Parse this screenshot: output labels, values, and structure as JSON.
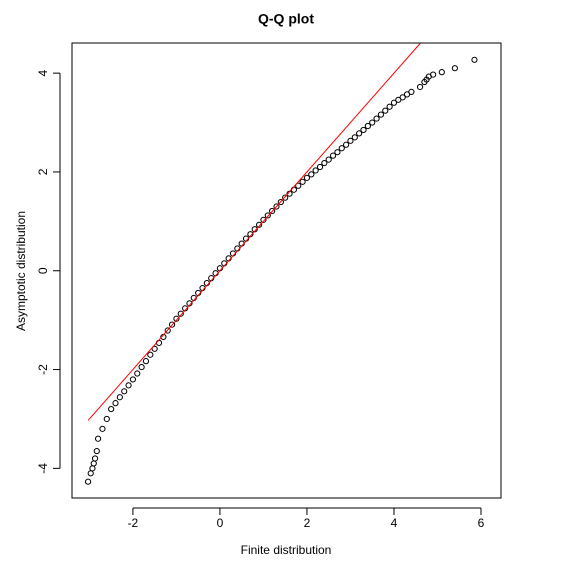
{
  "chart_data": {
    "type": "scatter",
    "title": "Q-Q plot",
    "x_label": "Finite distribution",
    "y_label": "Asymptotic distribution",
    "xlim": [
      -3.4,
      6.46
    ],
    "ylim": [
      -4.6,
      4.61
    ],
    "xticks": [
      -2,
      0,
      2,
      4,
      6
    ],
    "yticks": [
      -4,
      -2,
      0,
      2,
      4
    ],
    "series": [
      {
        "mark": "point",
        "color": "#000000",
        "x": [
          -3.03,
          -2.97,
          -2.93,
          -2.9,
          -2.87,
          -2.83,
          -2.8,
          -2.7,
          -2.6,
          -2.5,
          -2.4,
          -2.3,
          -2.2,
          -2.1,
          -2.0,
          -1.9,
          -1.8,
          -1.7,
          -1.6,
          -1.5,
          -1.4,
          -1.3,
          -1.2,
          -1.1,
          -1.0,
          -0.9,
          -0.8,
          -0.7,
          -0.6,
          -0.5,
          -0.4,
          -0.3,
          -0.2,
          -0.1,
          0,
          0.1,
          0.2,
          0.3,
          0.4,
          0.5,
          0.6,
          0.7,
          0.8,
          0.9,
          1.0,
          1.1,
          1.2,
          1.3,
          1.4,
          1.5,
          1.6,
          1.7,
          1.8,
          1.9,
          2.0,
          2.1,
          2.2,
          2.3,
          2.4,
          2.5,
          2.6,
          2.7,
          2.8,
          2.9,
          3.0,
          3.1,
          3.2,
          3.3,
          3.4,
          3.5,
          3.6,
          3.7,
          3.8,
          3.9,
          4.0,
          4.1,
          4.2,
          4.3,
          4.4,
          4.6,
          4.7,
          4.75,
          4.8,
          4.9,
          5.1,
          5.4,
          5.85
        ],
        "values": [
          -4.27,
          -4.1,
          -4.0,
          -3.9,
          -3.8,
          -3.65,
          -3.4,
          -3.2,
          -3.0,
          -2.8,
          -2.68,
          -2.56,
          -2.44,
          -2.32,
          -2.2,
          -2.08,
          -1.95,
          -1.83,
          -1.7,
          -1.58,
          -1.46,
          -1.34,
          -1.21,
          -1.09,
          -0.97,
          -0.87,
          -0.76,
          -0.66,
          -0.55,
          -0.45,
          -0.35,
          -0.25,
          -0.15,
          -0.05,
          0.05,
          0.15,
          0.25,
          0.35,
          0.45,
          0.55,
          0.65,
          0.74,
          0.84,
          0.93,
          1.03,
          1.12,
          1.21,
          1.3,
          1.39,
          1.48,
          1.56,
          1.64,
          1.72,
          1.8,
          1.88,
          1.95,
          2.03,
          2.1,
          2.18,
          2.25,
          2.33,
          2.4,
          2.48,
          2.55,
          2.63,
          2.7,
          2.78,
          2.85,
          2.93,
          3.0,
          3.08,
          3.16,
          3.24,
          3.32,
          3.4,
          3.46,
          3.51,
          3.57,
          3.62,
          3.72,
          3.82,
          3.87,
          3.93,
          3.97,
          4.02,
          4.1,
          4.27
        ]
      },
      {
        "mark": "line",
        "color": "#ff0000",
        "x": [
          -3.03,
          4.6
        ],
        "values": [
          -3.03,
          4.6
        ]
      }
    ]
  }
}
